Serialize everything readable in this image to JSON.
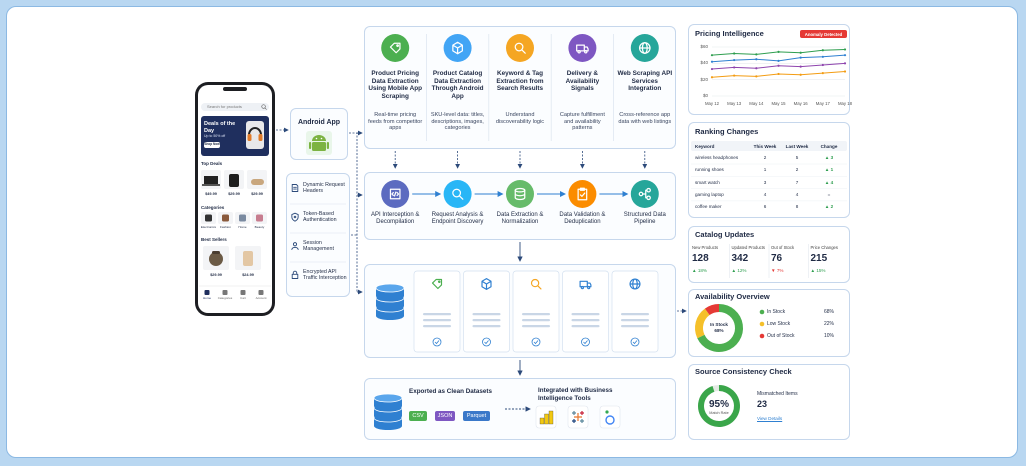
{
  "phone": {
    "search_placeholder": "Search for products",
    "banner": {
      "title": "Deals of the Day",
      "subtitle": "Up to 50% off",
      "button": "Shop Now"
    },
    "top_deals": {
      "title": "Top Deals",
      "prices": [
        "$49.99",
        "$29.99",
        "$29.99"
      ]
    },
    "categories": {
      "title": "Categories",
      "items": [
        "Electronics",
        "Fashion",
        "Home",
        "Beauty"
      ]
    },
    "best_sellers": {
      "title": "Best Sellers",
      "prices": [
        "$29.99",
        "$24.99"
      ]
    },
    "nav": [
      "Home",
      "Categories",
      "Cart",
      "Account"
    ]
  },
  "android_app": "Android App",
  "techniques": [
    "Dynamic Request Headers",
    "Token-Based Authentication",
    "Session Management",
    "Encrypted API Traffic Interception"
  ],
  "use_cases": [
    {
      "title": "Product Pricing Data Extraction Using Mobile App Scraping",
      "description": "Real-time pricing feeds from competitor apps"
    },
    {
      "title": "Product Catalog Data Extraction Through Android App",
      "description": "SKU-level data: titles, descriptions, images, categories"
    },
    {
      "title": "Keyword & Tag Extraction from Search Results",
      "description": "Understand discoverability logic"
    },
    {
      "title": "Delivery & Availability Signals",
      "description": "Capture fulfillment and availability patterns"
    },
    {
      "title": "Web Scraping API Services Integration",
      "description": "Cross-reference app data with web listings"
    }
  ],
  "pipeline": [
    "API Interception & Decompilation",
    "Request Analysis & Endpoint Discovery",
    "Data Extraction & Normalization",
    "Data Validation & Deduplication",
    "Structured Data Pipeline"
  ],
  "storage": [
    "Pricing Data",
    "Catalog Data",
    "Keywords & Tags",
    "Availability Data",
    "Web Data"
  ],
  "export": {
    "title": "Exported as Clean Datasets",
    "formats": [
      "CSV",
      "JSON",
      "Parquet"
    ],
    "integration": "Integrated with Business Intelligence Tools"
  },
  "pricing_intelligence": {
    "type": "line",
    "title": "Pricing Intelligence",
    "badge": "Anomaly Detected",
    "x": [
      "May 12",
      "May 13",
      "May 14",
      "May 15",
      "May 16",
      "May 17",
      "May 18"
    ],
    "ylim": [
      0,
      60
    ],
    "yticks": [
      {
        "value": 0,
        "label": "$0"
      },
      {
        "value": 20,
        "label": "$20"
      },
      {
        "value": 40,
        "label": "$40"
      },
      {
        "value": 60,
        "label": "$60"
      }
    ],
    "grid": true,
    "series": [
      {
        "color": "#2e9e4f",
        "values": [
          50,
          52,
          51,
          54,
          53,
          56,
          57
        ]
      },
      {
        "color": "#2f80d1",
        "values": [
          42,
          44,
          45,
          43,
          47,
          48,
          50
        ]
      },
      {
        "color": "#8e44ad",
        "values": [
          33,
          35,
          34,
          37,
          36,
          38,
          40
        ]
      },
      {
        "color": "#f39c12",
        "values": [
          23,
          25,
          24,
          27,
          26,
          28,
          30
        ]
      }
    ]
  },
  "ranking": {
    "title": "Ranking Changes",
    "columns": [
      "Keyword",
      "This Week",
      "Last Week",
      "Change"
    ],
    "rows": [
      [
        "wireless headphones",
        2,
        5,
        "▲ 3"
      ],
      [
        "running shoes",
        1,
        2,
        "▲ 1"
      ],
      [
        "smart watch",
        3,
        7,
        "▲ 4"
      ],
      [
        "gaming laptop",
        4,
        4,
        "="
      ],
      [
        "coffee maker",
        6,
        8,
        "▲ 2"
      ]
    ]
  },
  "catalog_updates": {
    "title": "Catalog Updates",
    "items": [
      {
        "label": "New Products",
        "value": 128,
        "change": "▲ 18%"
      },
      {
        "label": "Updated Products",
        "value": 342,
        "change": "▲ 12%"
      },
      {
        "label": "Out of Stock",
        "value": 76,
        "change": "▼ 7%"
      },
      {
        "label": "Price Changes",
        "value": 215,
        "change": "▲ 15%"
      }
    ]
  },
  "availability": {
    "type": "pie",
    "title": "Availability Overview",
    "categories": [
      "In Stock",
      "Low Stock",
      "Out of Stock"
    ],
    "values": [
      68,
      22,
      10
    ],
    "value_labels": [
      "68%",
      "22%",
      "10%"
    ],
    "colors": [
      "#4caf50",
      "#f5c02a",
      "#e53935"
    ]
  },
  "source_check": {
    "title": "Source Consistency Check",
    "match": {
      "value": 95,
      "value_label": "95%",
      "caption": "Match Rate"
    },
    "mismatched": {
      "label": "Mismatched Items",
      "value": 23
    },
    "link": "View Details"
  }
}
